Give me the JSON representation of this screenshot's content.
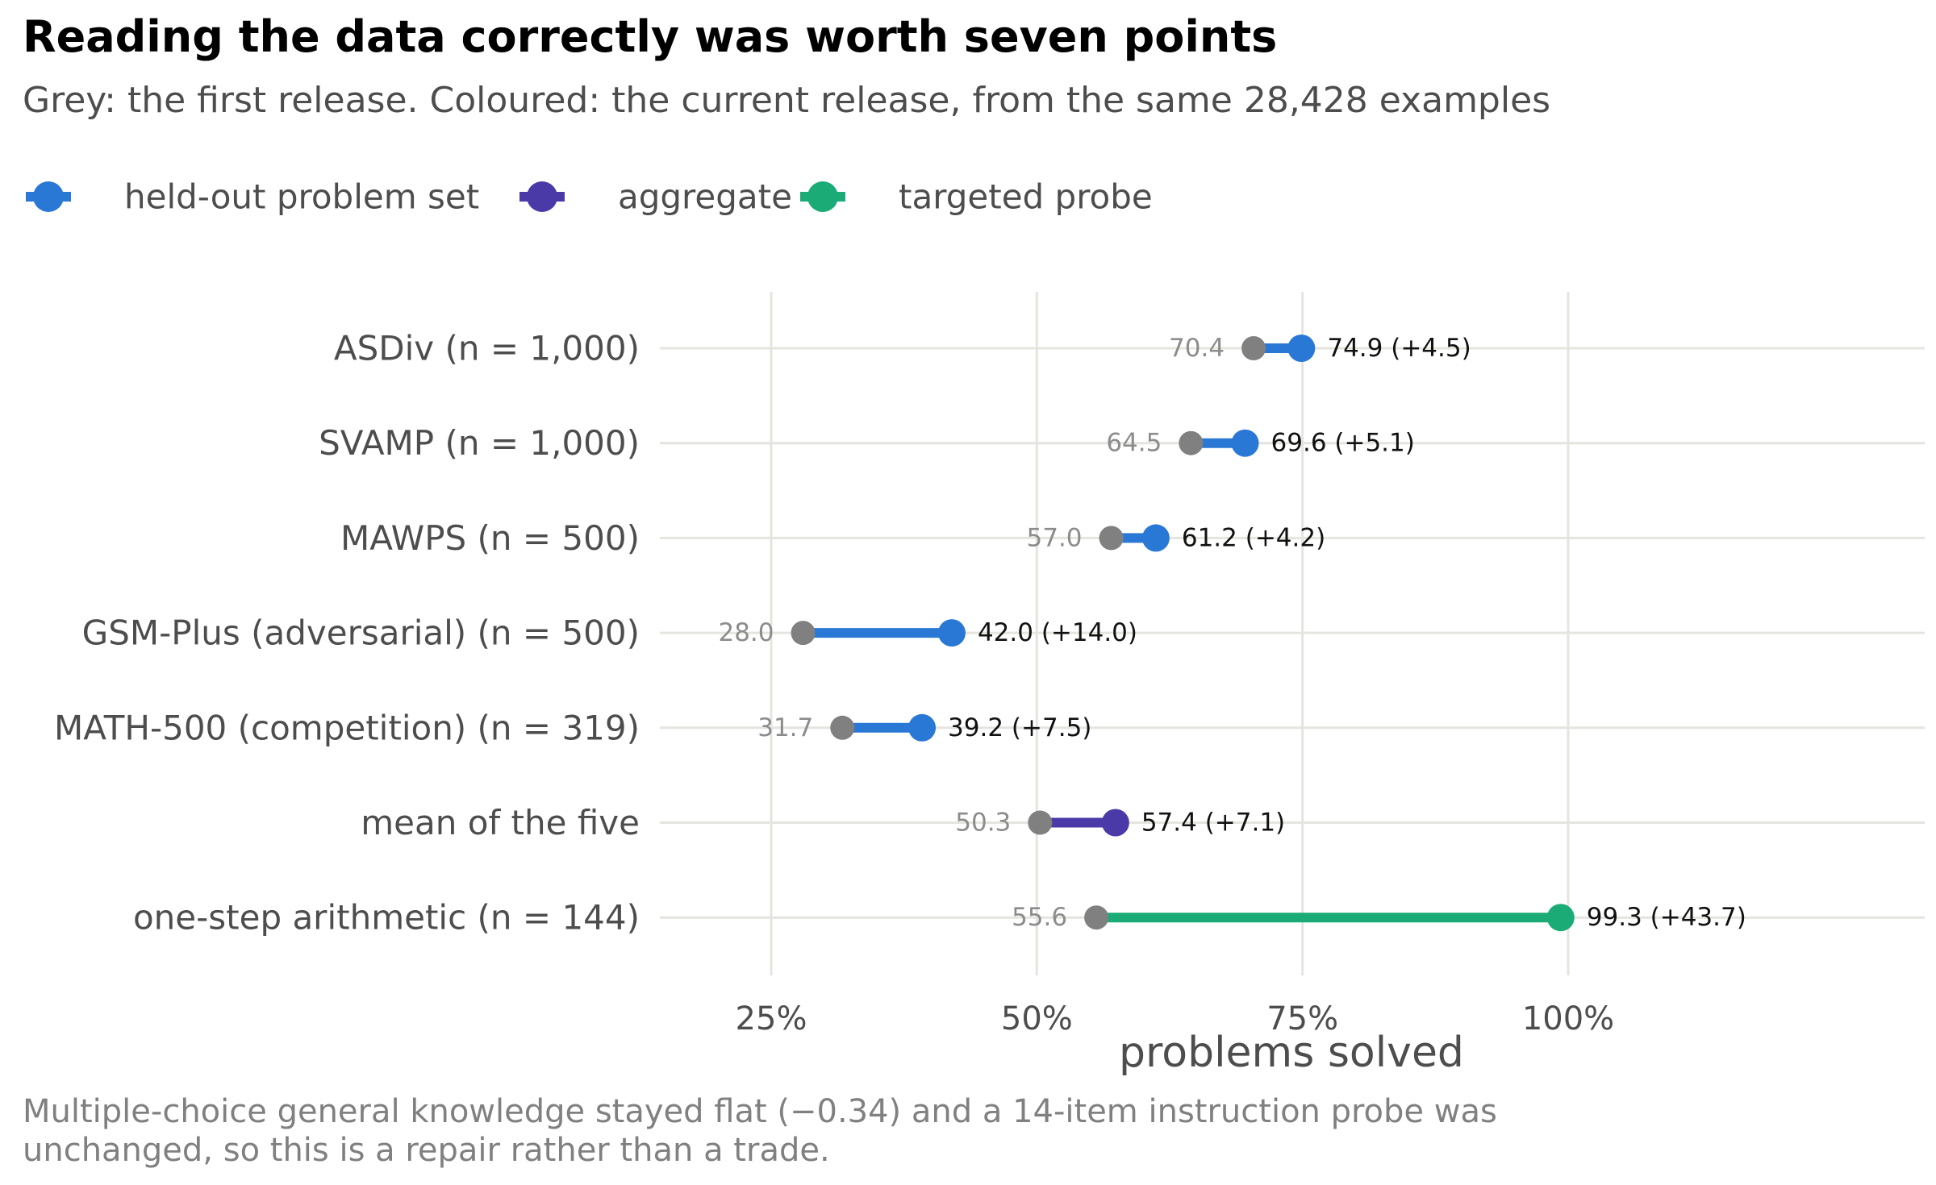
{
  "chart_data": {
    "type": "dumbbell",
    "title": "Reading the data correctly was worth seven points",
    "subtitle": "Grey: the first release. Coloured: the current release, from the same 28,428 examples",
    "xlabel": "problems solved",
    "xlim": [
      18,
      142
    ],
    "xticks": [
      25,
      50,
      75,
      100
    ],
    "tick_labels": [
      "25%",
      "50%",
      "75%",
      "100%"
    ],
    "grid": true,
    "legend_position": "top-left",
    "caption": "Multiple-choice general knowledge stayed flat (−0.34) and a 14-item instruction probe was unchanged, so this is a repair rather than a trade.",
    "caption_lines": [
      "Multiple-choice general knowledge stayed flat (−0.34) and a 14-item instruction probe was",
      "unchanged, so this is a repair rather than a trade."
    ],
    "legend": [
      {
        "name": "held-out problem set",
        "color": "#2a78d6"
      },
      {
        "name": "aggregate",
        "color": "#4a3aa8"
      },
      {
        "name": "targeted probe",
        "color": "#1aab77"
      }
    ],
    "grey_color": "#808080",
    "rows": [
      {
        "label": "ASDiv  (n = 1,000)",
        "first": 70.4,
        "current": 74.9,
        "first_label": "70.4",
        "current_label": "74.9  (+4.5)",
        "group": "held-out problem set"
      },
      {
        "label": "SVAMP  (n = 1,000)",
        "first": 64.5,
        "current": 69.6,
        "first_label": "64.5",
        "current_label": "69.6  (+5.1)",
        "group": "held-out problem set"
      },
      {
        "label": "MAWPS  (n = 500)",
        "first": 57.0,
        "current": 61.2,
        "first_label": "57.0",
        "current_label": "61.2  (+4.2)",
        "group": "held-out problem set"
      },
      {
        "label": "GSM-Plus (adversarial)  (n = 500)",
        "first": 28.0,
        "current": 42.0,
        "first_label": "28.0",
        "current_label": "42.0  (+14.0)",
        "group": "held-out problem set"
      },
      {
        "label": "MATH-500 (competition)  (n = 319)",
        "first": 31.7,
        "current": 39.2,
        "first_label": "31.7",
        "current_label": "39.2  (+7.5)",
        "group": "held-out problem set"
      },
      {
        "label": "mean of the five",
        "first": 50.3,
        "current": 57.4,
        "first_label": "50.3",
        "current_label": "57.4  (+7.1)",
        "group": "aggregate"
      },
      {
        "label": "one-step arithmetic  (n = 144)",
        "first": 55.6,
        "current": 99.3,
        "first_label": "55.6",
        "current_label": "99.3  (+43.7)",
        "group": "targeted probe"
      }
    ]
  }
}
